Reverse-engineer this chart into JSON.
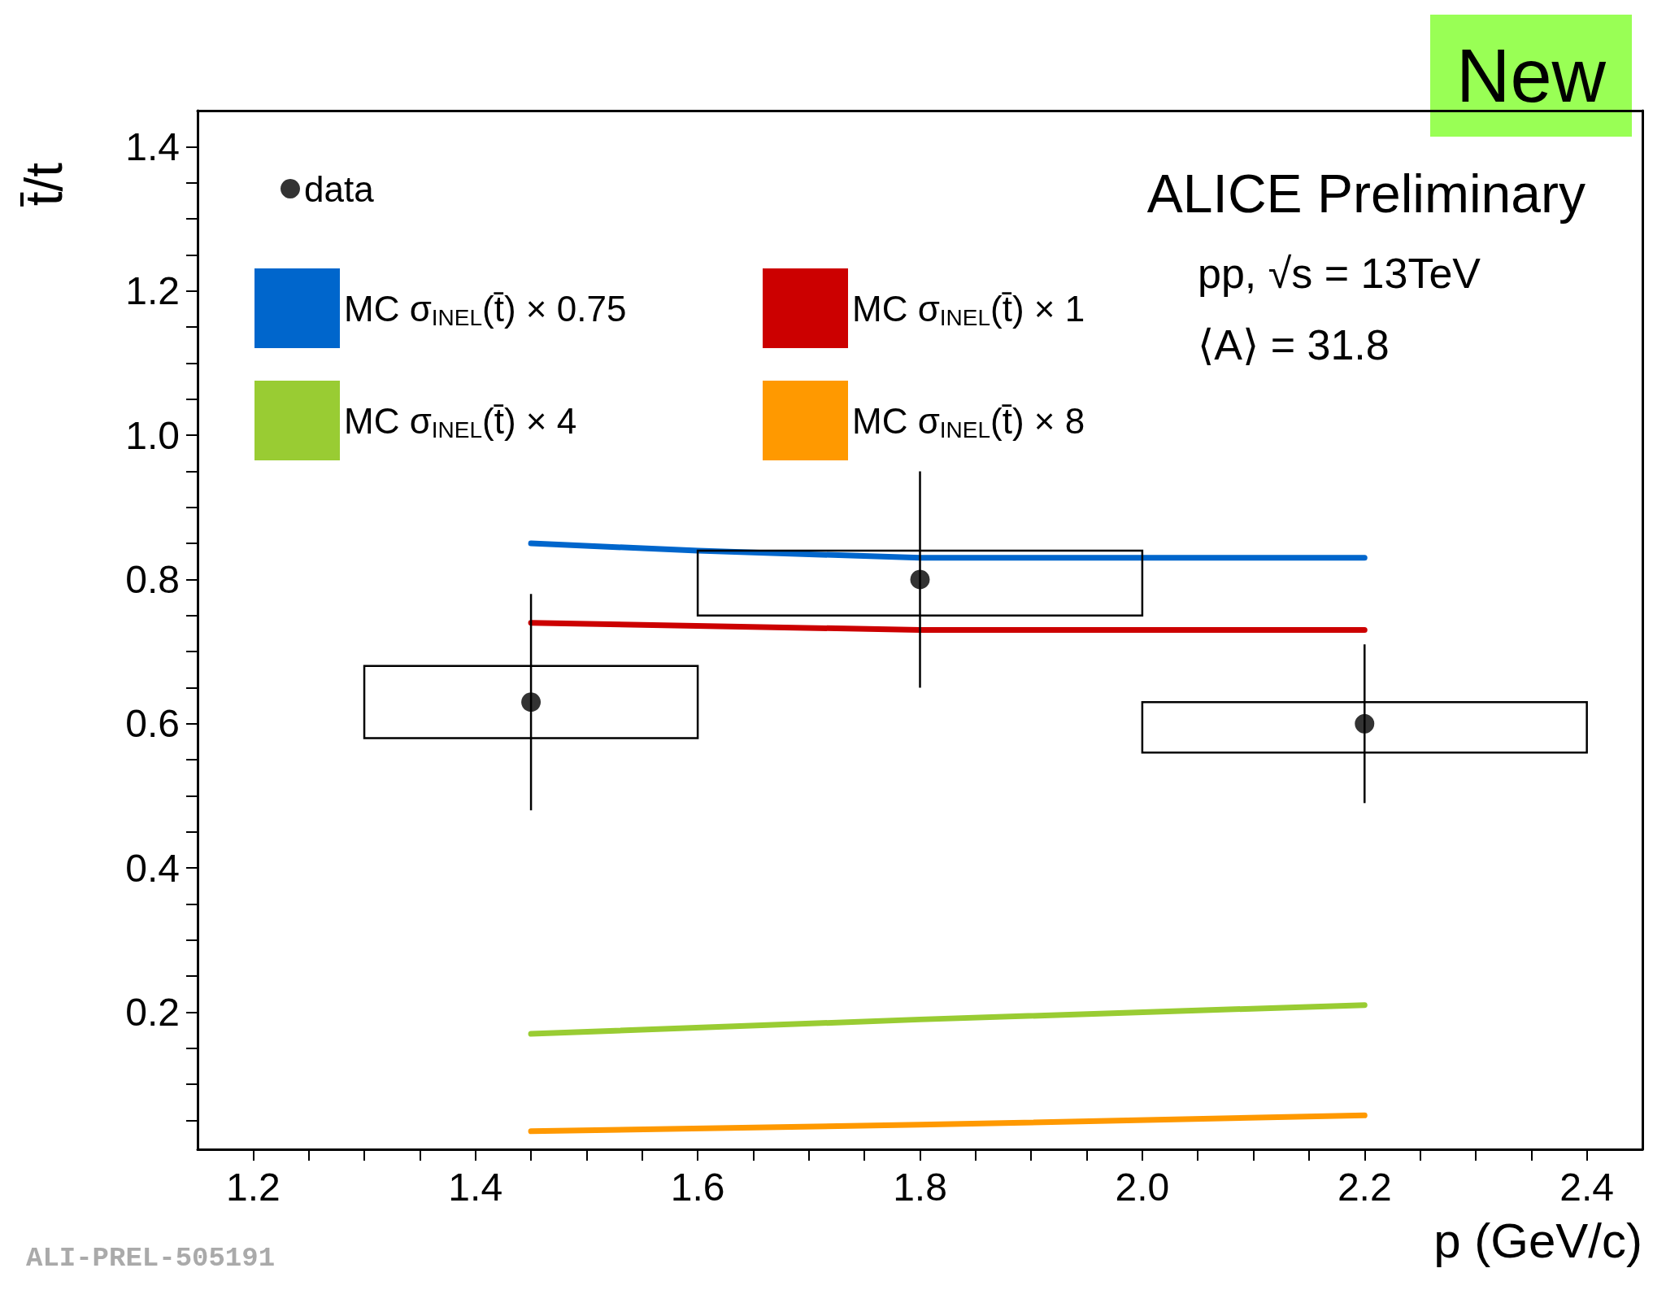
{
  "chart_data": {
    "type": "line",
    "xlabel": "p (GeV/c)",
    "ylabel": "t̄/t",
    "xlim": [
      1.15,
      2.45
    ],
    "ylim": [
      0.01,
      1.45
    ],
    "xticks": [
      1.2,
      {
        "value": 1.25,
        "label": null
      },
      {
        "value": 1.3,
        "label": null
      },
      {
        "value": 1.35,
        "label": null
      },
      1.4,
      {
        "value": 1.45,
        "label": null
      },
      {
        "value": 1.5,
        "label": null
      },
      {
        "value": 1.55,
        "label": null
      },
      1.6,
      {
        "value": 1.65,
        "label": null
      },
      {
        "value": 1.7,
        "label": null
      },
      {
        "value": 1.75,
        "label": null
      },
      1.8,
      {
        "value": 1.85,
        "label": null
      },
      {
        "value": 1.9,
        "label": null
      },
      {
        "value": 1.95,
        "label": null
      },
      {
        "value": 2,
        "label": "2.0"
      },
      {
        "value": 2.05,
        "label": null
      },
      {
        "value": 2.1,
        "label": null
      },
      {
        "value": 2.15,
        "label": null
      },
      2.2,
      {
        "value": 2.25,
        "label": null
      },
      {
        "value": 2.3,
        "label": null
      },
      {
        "value": 2.35,
        "label": null
      },
      2.4
    ],
    "yticks": [
      {
        "value": 0.05,
        "label": null
      },
      {
        "value": 0.1,
        "label": null
      },
      {
        "value": 0.15,
        "label": null
      },
      0.2,
      {
        "value": 0.25,
        "label": null
      },
      {
        "value": 0.3,
        "label": null
      },
      {
        "value": 0.35,
        "label": null
      },
      0.4,
      {
        "value": 0.45,
        "label": null
      },
      {
        "value": 0.5,
        "label": null
      },
      {
        "value": 0.55,
        "label": null
      },
      0.6,
      {
        "value": 0.65,
        "label": null
      },
      {
        "value": 0.7,
        "label": null
      },
      {
        "value": 0.75,
        "label": null
      },
      0.8,
      {
        "value": 0.85,
        "label": null
      },
      {
        "value": 0.9,
        "label": null
      },
      {
        "value": 0.95,
        "label": null
      },
      {
        "value": 1,
        "label": "1.0"
      },
      {
        "value": 1.05,
        "label": null
      },
      {
        "value": 1.1,
        "label": null
      },
      {
        "value": 1.15,
        "label": null
      },
      1.2,
      {
        "value": 1.25,
        "label": null
      },
      {
        "value": 1.3,
        "label": null
      },
      {
        "value": 1.35,
        "label": null
      },
      1.4
    ],
    "grid": false,
    "legend": "top left",
    "annotations": [
      "ALICE Preliminary",
      "pp, √s = 13TeV",
      "⟨A⟩ = 31.8",
      "New",
      "ALI-PREL-505191"
    ],
    "series": [
      {
        "name": "data",
        "type": "scatter",
        "marker": "circle",
        "color": "#000000",
        "x": [
          1.45,
          1.8,
          2.2
        ],
        "values": [
          0.63,
          0.8,
          0.6
        ],
        "errors": [
          0.15,
          0.15,
          0.11
        ]
      },
      {
        "type": "histogram",
        "color": "#000000",
        "bins": [
          1.3,
          1.6,
          2.0,
          2.4
        ],
        "base": [
          0.58,
          0.75,
          0.56
        ],
        "values": [
          0.1,
          0.09,
          0.07
        ]
      },
      {
        "name": "MC σ$_{INEL}$(t̄) × 0.75",
        "color": "#0066cc",
        "x": [
          1.45,
          1.6,
          1.8,
          2.2
        ],
        "values": [
          0.85,
          0.84,
          0.83,
          0.83
        ]
      },
      {
        "name": "MC σ$_{INEL}$(t̄) × 1",
        "color": "#cc0000",
        "x": [
          1.45,
          1.8,
          2.2
        ],
        "values": [
          0.74,
          0.73,
          0.73
        ]
      },
      {
        "name": "MC σ$_{INEL}$(t̄) × 4",
        "color": "#99cc33",
        "x": [
          1.45,
          1.8,
          2.2
        ],
        "values": [
          0.17,
          0.19,
          0.21
        ]
      },
      {
        "name": "MC σ$_{INEL}$(t̄) × 8",
        "color": "#ff9900",
        "x": [
          1.45,
          1.8,
          2.2
        ],
        "values": [
          0.035,
          0.044,
          0.057
        ]
      }
    ]
  }
}
